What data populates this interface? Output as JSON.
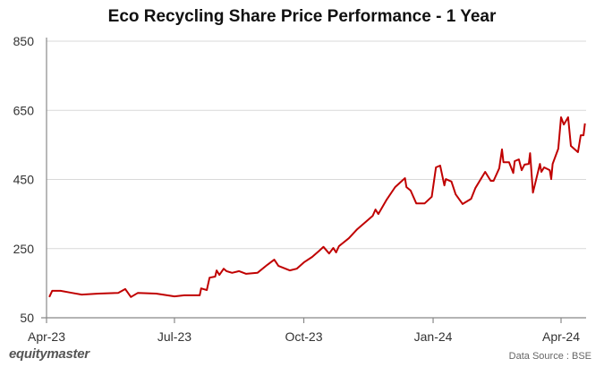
{
  "chart_data": {
    "type": "line",
    "title": "Eco Recycling Share Price Performance - 1 Year",
    "xlabel": "",
    "ylabel": "",
    "ylim": [
      50,
      850
    ],
    "yticks": [
      50,
      250,
      450,
      650,
      850
    ],
    "xticks": [
      {
        "label": "Apr-23",
        "date": "2023-04-01"
      },
      {
        "label": "Jul-23",
        "date": "2023-07-01"
      },
      {
        "label": "Oct-23",
        "date": "2023-10-01"
      },
      {
        "label": "Jan-24",
        "date": "2024-01-01"
      },
      {
        "label": "Apr-24",
        "date": "2024-04-01"
      }
    ],
    "xlim": [
      "2023-04-01",
      "2024-04-20"
    ],
    "grid": "horizontal",
    "line_color": "#c00000",
    "series": [
      {
        "points": [
          [
            "2023-04-03",
            110
          ],
          [
            "2023-04-05",
            128
          ],
          [
            "2023-04-11",
            128
          ],
          [
            "2023-04-19",
            122
          ],
          [
            "2023-04-26",
            117
          ],
          [
            "2023-05-08",
            120
          ],
          [
            "2023-05-22",
            122
          ],
          [
            "2023-05-27",
            133
          ],
          [
            "2023-05-31",
            110
          ],
          [
            "2023-06-05",
            122
          ],
          [
            "2023-06-18",
            120
          ],
          [
            "2023-07-01",
            112
          ],
          [
            "2023-07-08",
            115
          ],
          [
            "2023-07-19",
            115
          ],
          [
            "2023-07-20",
            135
          ],
          [
            "2023-07-24",
            130
          ],
          [
            "2023-07-26",
            166
          ],
          [
            "2023-07-30",
            169
          ],
          [
            "2023-07-31",
            187
          ],
          [
            "2023-08-02",
            174
          ],
          [
            "2023-08-05",
            192
          ],
          [
            "2023-08-07",
            185
          ],
          [
            "2023-08-11",
            180
          ],
          [
            "2023-08-16",
            185
          ],
          [
            "2023-08-21",
            177
          ],
          [
            "2023-08-29",
            180
          ],
          [
            "2023-09-05",
            203
          ],
          [
            "2023-09-10",
            218
          ],
          [
            "2023-09-13",
            200
          ],
          [
            "2023-09-21",
            187
          ],
          [
            "2023-09-26",
            192
          ],
          [
            "2023-10-01",
            210
          ],
          [
            "2023-10-07",
            226
          ],
          [
            "2023-10-12",
            244
          ],
          [
            "2023-10-15",
            255
          ],
          [
            "2023-10-19",
            236
          ],
          [
            "2023-10-22",
            252
          ],
          [
            "2023-10-24",
            239
          ],
          [
            "2023-10-26",
            257
          ],
          [
            "2023-11-02",
            280
          ],
          [
            "2023-11-08",
            306
          ],
          [
            "2023-11-14",
            327
          ],
          [
            "2023-11-19",
            345
          ],
          [
            "2023-11-21",
            363
          ],
          [
            "2023-11-23",
            350
          ],
          [
            "2023-11-29",
            392
          ],
          [
            "2023-12-05",
            428
          ],
          [
            "2023-12-12",
            454
          ],
          [
            "2023-12-13",
            428
          ],
          [
            "2023-12-16",
            418
          ],
          [
            "2023-12-20",
            381
          ],
          [
            "2023-12-26",
            381
          ],
          [
            "2023-12-31",
            400
          ],
          [
            "2024-01-03",
            485
          ],
          [
            "2024-01-06",
            490
          ],
          [
            "2024-01-09",
            433
          ],
          [
            "2024-01-10",
            451
          ],
          [
            "2024-01-14",
            444
          ],
          [
            "2024-01-17",
            407
          ],
          [
            "2024-01-22",
            379
          ],
          [
            "2024-01-28",
            394
          ],
          [
            "2024-01-31",
            425
          ],
          [
            "2024-02-07",
            472
          ],
          [
            "2024-02-11",
            446
          ],
          [
            "2024-02-13",
            446
          ],
          [
            "2024-02-17",
            482
          ],
          [
            "2024-02-19",
            537
          ],
          [
            "2024-02-20",
            500
          ],
          [
            "2024-02-24",
            500
          ],
          [
            "2024-02-27",
            469
          ],
          [
            "2024-02-28",
            503
          ],
          [
            "2024-03-02",
            508
          ],
          [
            "2024-03-04",
            477
          ],
          [
            "2024-03-06",
            493
          ],
          [
            "2024-03-09",
            495
          ],
          [
            "2024-03-10",
            526
          ],
          [
            "2024-03-12",
            412
          ],
          [
            "2024-03-17",
            495
          ],
          [
            "2024-03-18",
            472
          ],
          [
            "2024-03-20",
            485
          ],
          [
            "2024-03-24",
            477
          ],
          [
            "2024-03-25",
            451
          ],
          [
            "2024-03-26",
            495
          ],
          [
            "2024-03-30",
            539
          ],
          [
            "2024-04-01",
            630
          ],
          [
            "2024-04-03",
            609
          ],
          [
            "2024-04-06",
            630
          ],
          [
            "2024-04-08",
            547
          ],
          [
            "2024-04-13",
            529
          ],
          [
            "2024-04-15",
            578
          ],
          [
            "2024-04-17",
            578
          ],
          [
            "2024-04-18",
            612
          ]
        ]
      }
    ]
  },
  "footer": {
    "logo": "equitymaster",
    "source": "Data Source : BSE"
  }
}
